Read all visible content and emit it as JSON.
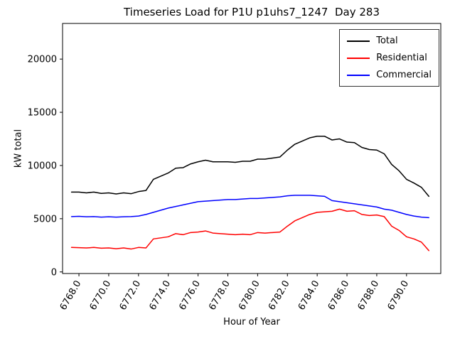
{
  "chart_data": {
    "type": "line",
    "title": "Timeseries Load for P1U p1uhs7_1247  Day 283",
    "xlabel": "Hour of Year",
    "ylabel": "kW total",
    "xlim": [
      6766.9,
      6792.3
    ],
    "ylim": [
      -150,
      23350
    ],
    "xticks": [
      6768,
      6770,
      6772,
      6774,
      6776,
      6778,
      6780,
      6782,
      6784,
      6786,
      6788,
      6790
    ],
    "xtick_labels": [
      "6768.0",
      "6770.0",
      "6772.0",
      "6774.0",
      "6776.0",
      "6778.0",
      "6780.0",
      "6782.0",
      "6784.0",
      "6786.0",
      "6788.0",
      "6790.0"
    ],
    "yticks": [
      0,
      5000,
      10000,
      15000,
      20000
    ],
    "ytick_labels": [
      "0",
      "5000",
      "10000",
      "15000",
      "20000"
    ],
    "grid": false,
    "legend_position": "upper right",
    "x": [
      6767.5,
      6768.0,
      6768.5,
      6769.0,
      6769.5,
      6770.0,
      6770.5,
      6771.0,
      6771.5,
      6772.0,
      6772.5,
      6773.0,
      6773.5,
      6774.0,
      6774.5,
      6775.0,
      6775.5,
      6776.0,
      6776.5,
      6777.0,
      6777.5,
      6778.0,
      6778.5,
      6779.0,
      6779.5,
      6780.0,
      6780.5,
      6781.0,
      6781.5,
      6782.0,
      6782.5,
      6783.0,
      6783.5,
      6784.0,
      6784.5,
      6785.0,
      6785.5,
      6786.0,
      6786.5,
      6787.0,
      6787.5,
      6788.0,
      6788.5,
      6789.0,
      6789.5,
      6790.0,
      6790.5,
      6791.0,
      6791.5
    ],
    "series": [
      {
        "name": "Total",
        "color": "#000000",
        "values": [
          7500,
          7500,
          7430,
          7500,
          7380,
          7430,
          7330,
          7430,
          7350,
          7550,
          7650,
          8700,
          9000,
          9300,
          9750,
          9800,
          10150,
          10350,
          10500,
          10350,
          10350,
          10350,
          10300,
          10400,
          10400,
          10600,
          10600,
          10700,
          10800,
          11450,
          12000,
          12300,
          12600,
          12750,
          12750,
          12400,
          12500,
          12200,
          12150,
          11700,
          11500,
          11450,
          11100,
          10100,
          9500,
          8700,
          8350,
          7950,
          7100
        ]
      },
      {
        "name": "Residential",
        "color": "#ff0000",
        "values": [
          2300,
          2280,
          2250,
          2300,
          2230,
          2250,
          2180,
          2250,
          2150,
          2300,
          2250,
          3100,
          3200,
          3300,
          3600,
          3500,
          3700,
          3750,
          3850,
          3650,
          3600,
          3550,
          3500,
          3550,
          3500,
          3700,
          3650,
          3700,
          3750,
          4300,
          4800,
          5100,
          5400,
          5600,
          5650,
          5700,
          5900,
          5700,
          5750,
          5400,
          5300,
          5350,
          5200,
          4300,
          3900,
          3300,
          3100,
          2800,
          2000
        ]
      },
      {
        "name": "Commercial",
        "color": "#0000ff",
        "values": [
          5200,
          5220,
          5180,
          5200,
          5150,
          5180,
          5150,
          5180,
          5200,
          5250,
          5400,
          5600,
          5800,
          6000,
          6150,
          6300,
          6450,
          6600,
          6650,
          6700,
          6750,
          6800,
          6800,
          6850,
          6900,
          6900,
          6950,
          7000,
          7050,
          7150,
          7200,
          7200,
          7200,
          7150,
          7100,
          6700,
          6600,
          6500,
          6400,
          6300,
          6200,
          6100,
          5900,
          5800,
          5600,
          5400,
          5250,
          5150,
          5100
        ]
      }
    ]
  }
}
